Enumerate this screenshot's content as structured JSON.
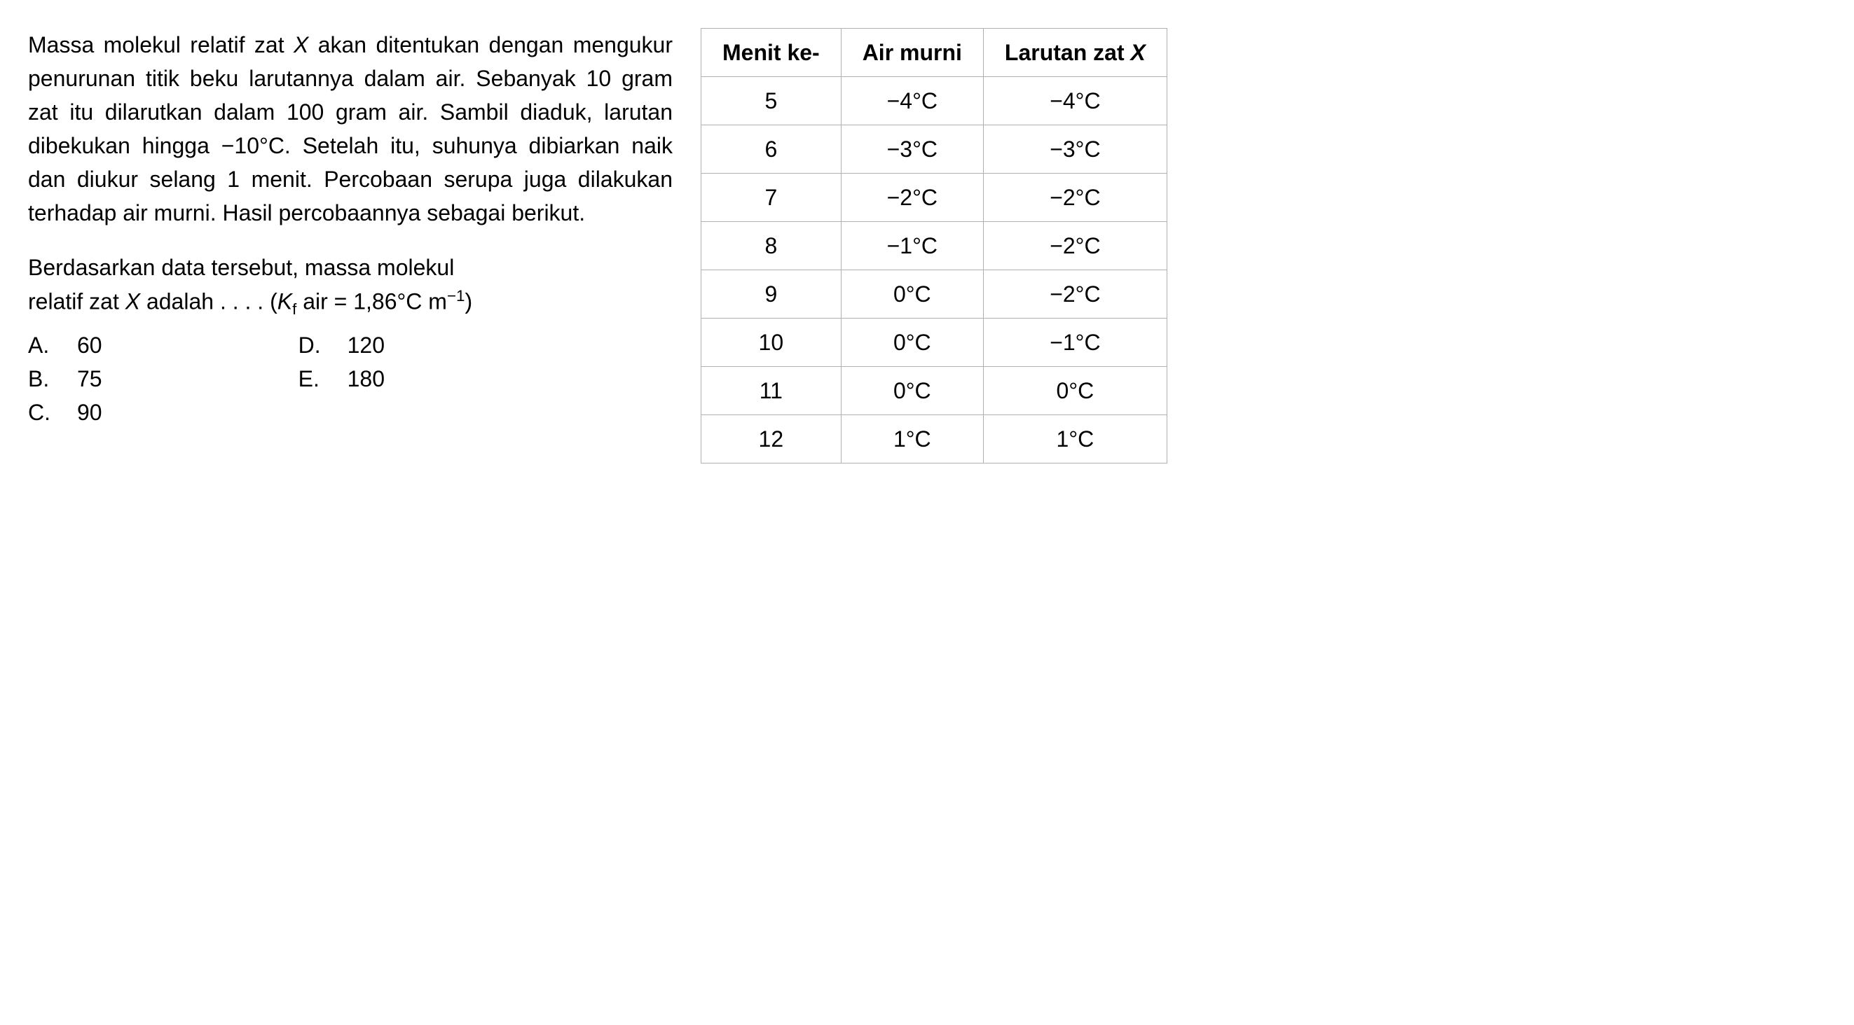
{
  "paragraph": {
    "text": "Massa molekul relatif zat X akan ditentukan dengan mengukur penurunan titik beku larutannya dalam air. Sebanyak 10 gram zat itu dilarutkan dalam 100 gram air. Sambil diaduk, larutan dibekukan hingga −10°C. Setelah itu, suhunya dibiarkan naik dan diukur selang 1 menit. Percobaan serupa juga dilakukan terhadap air murni. Hasil percobaannya sebagai berikut."
  },
  "question": {
    "line1": "Berdasarkan data tersebut, massa molekul",
    "line2_pre": "relatif zat ",
    "line2_x": "X",
    "line2_mid": " adalah . . . . (",
    "line2_kf": "K",
    "line2_f": "f",
    "line2_air": " air = 1,86°C m",
    "line2_exp": "−1",
    "line2_end": ")"
  },
  "options": {
    "a": {
      "letter": "A.",
      "value": "60"
    },
    "b": {
      "letter": "B.",
      "value": "75"
    },
    "c": {
      "letter": "C.",
      "value": "90"
    },
    "d": {
      "letter": "D.",
      "value": "120"
    },
    "e": {
      "letter": "E.",
      "value": "180"
    }
  },
  "table": {
    "headers": {
      "col1": "Menit ke-",
      "col2": "Air murni",
      "col3_pre": "Larutan zat ",
      "col3_x": "X"
    },
    "rows": [
      {
        "minute": "5",
        "pure": "−4°C",
        "solution": "−4°C"
      },
      {
        "minute": "6",
        "pure": "−3°C",
        "solution": "−3°C"
      },
      {
        "minute": "7",
        "pure": "−2°C",
        "solution": "−2°C"
      },
      {
        "minute": "8",
        "pure": "−1°C",
        "solution": "−2°C"
      },
      {
        "minute": "9",
        "pure": "0°C",
        "solution": "−2°C"
      },
      {
        "minute": "10",
        "pure": "0°C",
        "solution": "−1°C"
      },
      {
        "minute": "11",
        "pure": "0°C",
        "solution": "0°C"
      },
      {
        "minute": "12",
        "pure": "1°C",
        "solution": "1°C"
      }
    ],
    "styling": {
      "border_color": "#b0b0b0",
      "background_color": "#ffffff",
      "text_color": "#000000",
      "cell_padding": "10px 30px",
      "header_font_weight": "bold"
    }
  },
  "layout": {
    "font_family": "Arial",
    "base_font_size": 32,
    "line_height": 1.5,
    "page_padding": 40,
    "column_gap": 40
  }
}
